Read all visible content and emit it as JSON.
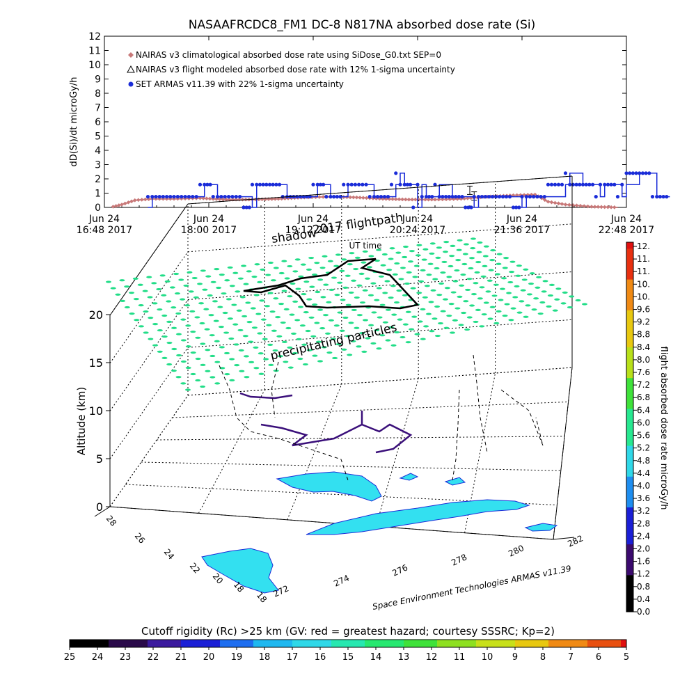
{
  "chart_data": [
    {
      "type": "line",
      "title": "NASAAFRCDC8_FM1 DC-8    N817NA absorbed dose rate (Si)",
      "ylabel": "dD(Si)/dt microGy/h",
      "xlabel": "UT time",
      "ylim": [
        0,
        12
      ],
      "yticks": [
        "0",
        "1",
        "2",
        "3",
        "4",
        "5",
        "6",
        "7",
        "8",
        "9",
        "10",
        "11",
        "12"
      ],
      "xticks": [
        {
          "date": "Jun 24",
          "time": "16:48 2017"
        },
        {
          "date": "Jun 24",
          "time": "18:00 2017"
        },
        {
          "date": "Jun 24",
          "time": "19:12 2017"
        },
        {
          "date": "Jun 24",
          "time": "20:24 2017"
        },
        {
          "date": "Jun 24",
          "time": "21:36 2017"
        },
        {
          "date": "Jun 24",
          "time": "22:48 2017"
        }
      ],
      "legend_placement": "top-left",
      "series": [
        {
          "name": "NAIRAS v3 climatological absorbed dose rate using SiDose_G0.txt SEP=0",
          "color": "#c87878",
          "marker": "diamond",
          "points": [
            [
              16.9,
              0.05
            ],
            [
              17.0,
              0.2
            ],
            [
              17.15,
              0.5
            ],
            [
              17.35,
              0.6
            ],
            [
              17.6,
              0.6
            ],
            [
              17.9,
              0.65
            ],
            [
              18.2,
              0.55
            ],
            [
              18.5,
              0.55
            ],
            [
              18.8,
              0.6
            ],
            [
              19.1,
              0.7
            ],
            [
              19.4,
              0.75
            ],
            [
              19.7,
              0.7
            ],
            [
              20.0,
              0.6
            ],
            [
              20.3,
              0.55
            ],
            [
              20.6,
              0.55
            ],
            [
              20.9,
              0.6
            ],
            [
              21.2,
              0.75
            ],
            [
              21.5,
              0.85
            ],
            [
              21.75,
              0.9
            ],
            [
              21.9,
              0.4
            ],
            [
              22.1,
              0.2
            ],
            [
              22.4,
              0.05
            ],
            [
              22.7,
              0.0
            ]
          ]
        },
        {
          "name": "NAIRAS v3 flight modeled absorbed dose rate with 12% 1-sigma uncertainty",
          "color": "#000000",
          "marker": "triangle",
          "points": [
            [
              21.0,
              1.2
            ],
            [
              21.05,
              0.8
            ]
          ]
        },
        {
          "name": "SET ARMAS v11.39 with 22% 1-sigma uncertainty",
          "color": "#1a2cd8",
          "marker": "circle",
          "points": [
            [
              17.3,
              0.0
            ],
            [
              17.35,
              0.75
            ],
            [
              17.6,
              0.75
            ],
            [
              17.9,
              0.75
            ],
            [
              17.95,
              1.6
            ],
            [
              18.05,
              1.6
            ],
            [
              18.1,
              0.75
            ],
            [
              18.4,
              0.75
            ],
            [
              18.5,
              0.0
            ],
            [
              18.55,
              1.6
            ],
            [
              18.85,
              1.6
            ],
            [
              18.9,
              0.75
            ],
            [
              19.2,
              0.75
            ],
            [
              19.25,
              1.6
            ],
            [
              19.35,
              1.6
            ],
            [
              19.4,
              0.75
            ],
            [
              19.55,
              0.75
            ],
            [
              19.6,
              1.6
            ],
            [
              19.85,
              1.6
            ],
            [
              19.9,
              0.75
            ],
            [
              20.1,
              0.75
            ],
            [
              20.15,
              1.6
            ],
            [
              20.2,
              2.4
            ],
            [
              20.25,
              1.6
            ],
            [
              20.35,
              1.6
            ],
            [
              20.4,
              0.0
            ],
            [
              20.45,
              1.6
            ],
            [
              20.5,
              0.75
            ],
            [
              20.6,
              0.75
            ],
            [
              20.65,
              1.6
            ],
            [
              20.8,
              0.75
            ],
            [
              20.95,
              0.75
            ],
            [
              21.05,
              0.0
            ],
            [
              21.1,
              0.75
            ],
            [
              21.5,
              0.75
            ],
            [
              21.6,
              0.0
            ],
            [
              21.65,
              0.75
            ],
            [
              21.9,
              0.75
            ],
            [
              22.1,
              1.6
            ],
            [
              22.15,
              2.4
            ],
            [
              22.3,
              1.6
            ],
            [
              22.45,
              1.6
            ],
            [
              22.5,
              0.75
            ],
            [
              22.55,
              1.6
            ],
            [
              22.7,
              1.6
            ],
            [
              22.75,
              0.75
            ],
            [
              22.8,
              1.6
            ],
            [
              22.95,
              2.4
            ],
            [
              23.1,
              2.4
            ],
            [
              23.15,
              0.75
            ],
            [
              23.3,
              0.75
            ]
          ]
        }
      ]
    },
    {
      "type": "scatter",
      "title": "",
      "zlabel": "Altitude (km)",
      "zticks": [
        "0",
        "5",
        "10",
        "15",
        "20"
      ],
      "lat_ticks": [
        "28",
        "26",
        "24",
        "22",
        "20",
        "18",
        "18"
      ],
      "lon_ticks": [
        "272",
        "274",
        "276",
        "278",
        "280",
        "282"
      ],
      "annotations": [
        "shadow",
        "2017 flightpath",
        "precipitating particles"
      ],
      "credit": "Space Environment Technologies ARMAS v11.39",
      "colorbar": {
        "label": "flight absorbed dose rate microGy/h",
        "ticks": [
          "12.",
          "11.",
          "11.",
          "10.",
          "10.",
          "9.6",
          "9.2",
          "8.8",
          "8.4",
          "8.0",
          "7.6",
          "7.2",
          "6.8",
          "6.4",
          "6.0",
          "5.6",
          "5.2",
          "4.8",
          "4.4",
          "4.0",
          "3.6",
          "3.2",
          "2.8",
          "2.4",
          "2.0",
          "1.6",
          "1.2",
          "0.8",
          "0.4",
          "0.0"
        ]
      }
    },
    {
      "type": "heatmap",
      "title": "Cutoff rigidity (Rc) >25 km (GV: red = greatest hazard; courtesy SSSRC; Kp=2)",
      "ticks": [
        "25",
        "24",
        "23",
        "22",
        "21",
        "20",
        "19",
        "18",
        "17",
        "16",
        "15",
        "14",
        "13",
        "12",
        "11",
        "10",
        "9",
        "8",
        "7",
        "6",
        "5"
      ]
    }
  ],
  "colors": {
    "series_nairas": "#c87878",
    "series_armas": "#1a2cd8",
    "particles": "#22dd88",
    "land": "#33e0f0"
  }
}
